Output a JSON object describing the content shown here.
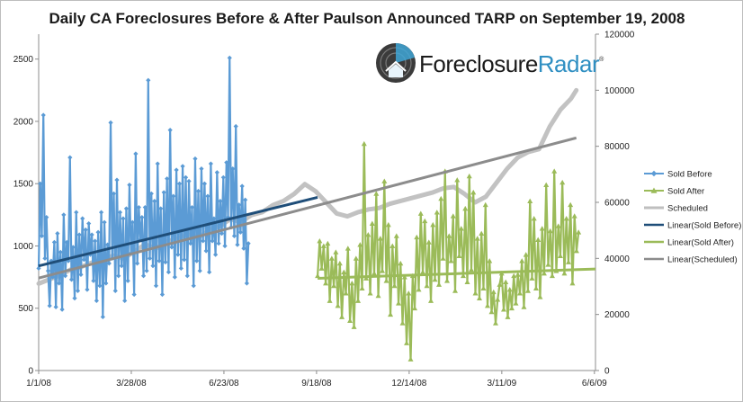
{
  "chart_data": {
    "type": "line",
    "title": "Daily CA Foreclosures Before & After Paulson Announced TARP on September 19, 2008",
    "logo": {
      "brand_part1": "Foreclosure",
      "brand_part2": "Radar",
      "mark": "®"
    },
    "x_tick_labels": [
      "1/1/08",
      "3/28/08",
      "6/23/08",
      "9/18/08",
      "12/14/08",
      "3/11/09",
      "6/6/09"
    ],
    "x_range_days": [
      0,
      523
    ],
    "tarp_day": 262,
    "y_left": {
      "ticks": [
        "0",
        "500",
        "1000",
        "1500",
        "2000",
        "2500"
      ],
      "range": [
        0,
        2700
      ]
    },
    "y_right": {
      "ticks": [
        "0",
        "20000",
        "40000",
        "60000",
        "80000",
        "100000",
        "120000"
      ],
      "range": [
        0,
        120000
      ]
    },
    "colors": {
      "sold_before": "#5b9bd5",
      "sold_after": "#9bbb59",
      "scheduled": "#bfbfbf",
      "linear_before": "#1f4e79",
      "linear_after": "#9bbb59",
      "linear_scheduled": "#8c8c8c",
      "axis": "#8c8c8c"
    },
    "legend": [
      {
        "key": "sold_before",
        "label": "Sold Before",
        "marker": "diamond"
      },
      {
        "key": "sold_after",
        "label": "Sold After",
        "marker": "triangle"
      },
      {
        "key": "scheduled",
        "label": "Scheduled",
        "marker": "line"
      },
      {
        "key": "linear_before",
        "label": "Linear(Sold Before)",
        "marker": "line"
      },
      {
        "key": "linear_after",
        "label": "Linear(Sold After)",
        "marker": "line"
      },
      {
        "key": "linear_scheduled",
        "label": "Linear(Scheduled)",
        "marker": "line"
      }
    ],
    "series": {
      "sold_before": {
        "name": "Sold Before",
        "axis": "left",
        "start_day": 0,
        "step_days": 1.47,
        "values": [
          820,
          1500,
          1080,
          2050,
          900,
          1230,
          800,
          520,
          880,
          750,
          1030,
          510,
          1100,
          700,
          950,
          490,
          1250,
          760,
          1030,
          880,
          1710,
          730,
          990,
          580,
          1270,
          640,
          1090,
          770,
          1220,
          890,
          1130,
          650,
          1180,
          930,
          1090,
          720,
          1040,
          560,
          1110,
          680,
          1270,
          430,
          1190,
          700,
          1010,
          860,
          1990,
          900,
          1420,
          640,
          1530,
          760,
          1270,
          840,
          1220,
          560,
          1300,
          720,
          1490,
          940,
          1190,
          610,
          1740,
          860,
          1310,
          1050,
          1230,
          760,
          1310,
          800,
          2330,
          900,
          1420,
          840,
          1360,
          680,
          1660,
          880,
          1300,
          610,
          1430,
          870,
          1540,
          790,
          1930,
          990,
          1400,
          750,
          1610,
          930,
          1500,
          820,
          1640,
          890,
          1550,
          760,
          1520,
          1020,
          1310,
          680,
          1700,
          880,
          1440,
          800,
          1620,
          1040,
          1500,
          960,
          1400,
          790,
          1660,
          1040,
          1220,
          930,
          1590,
          1020,
          1360,
          1100,
          1550,
          1000,
          1670,
          1230,
          2510,
          1150,
          1620,
          1080,
          1960,
          1010,
          1330,
          1110,
          1480,
          980,
          1370,
          700,
          1020
        ]
      },
      "sold_after": {
        "name": "Sold After",
        "axis": "left",
        "start_day": 262,
        "step_days": 1.9,
        "values": [
          760,
          1040,
          820,
          1000,
          700,
          1020,
          560,
          900,
          680,
          950,
          520,
          860,
          430,
          790,
          620,
          980,
          400,
          700,
          350,
          900,
          560,
          1010,
          660,
          1820,
          740,
          1090,
          620,
          1180,
          780,
          1420,
          600,
          1060,
          800,
          1520,
          720,
          1170,
          450,
          1000,
          680,
          1080,
          540,
          860,
          380,
          750,
          220,
          620,
          90,
          760,
          500,
          1070,
          650,
          1260,
          790,
          1200,
          680,
          1030,
          560,
          1170,
          730,
          1270,
          690,
          1380,
          900,
          1600,
          720,
          1080,
          880,
          1240,
          640,
          1530,
          920,
          1140,
          760,
          1300,
          710,
          1560,
          810,
          1430,
          620,
          1060,
          580,
          1100,
          660,
          1330,
          520,
          880,
          470,
          630,
          380,
          570,
          690,
          780,
          490,
          710,
          430,
          650,
          500,
          760,
          540,
          770,
          620,
          880,
          510,
          930,
          640,
          1360,
          740,
          1220,
          660,
          1050,
          590,
          1140,
          780,
          1490,
          850,
          1120,
          760,
          1600,
          800,
          1160,
          920,
          1510,
          780,
          1220,
          870,
          1330,
          700,
          1240,
          960,
          1110
        ]
      },
      "scheduled": {
        "name": "Scheduled",
        "axis": "right",
        "days": [
          0,
          10,
          20,
          30,
          40,
          50,
          60,
          70,
          80,
          90,
          100,
          110,
          120,
          130,
          140,
          150,
          160,
          170,
          180,
          190,
          200,
          210,
          220,
          230,
          240,
          250,
          260,
          270,
          280,
          290,
          300,
          310,
          320,
          330,
          340,
          350,
          360,
          370,
          380,
          390,
          400,
          410,
          420,
          430,
          440,
          450,
          460,
          470,
          480,
          490,
          500,
          505
        ],
        "values": [
          31000,
          32500,
          34000,
          36000,
          37000,
          38500,
          39500,
          41000,
          40000,
          42500,
          45000,
          43500,
          46000,
          47000,
          48500,
          47500,
          50000,
          51500,
          54000,
          53000,
          55500,
          56500,
          59000,
          60500,
          63000,
          66500,
          64000,
          60000,
          56000,
          55000,
          56500,
          57500,
          58000,
          59500,
          60500,
          61500,
          62500,
          63500,
          65000,
          65500,
          63000,
          60000,
          62000,
          67000,
          72000,
          76000,
          78000,
          79000,
          87000,
          93000,
          97000,
          100000
        ]
      },
      "linear_before": {
        "name": "Linear(Sold Before)",
        "axis": "left",
        "from": [
          0,
          840
        ],
        "to": [
          262,
          1390
        ]
      },
      "linear_after": {
        "name": "Linear(Sold After)",
        "axis": "left",
        "from": [
          262,
          740
        ],
        "to": [
          523,
          815
        ]
      },
      "linear_scheduled": {
        "name": "Linear(Scheduled)",
        "axis": "right",
        "from": [
          0,
          33000
        ],
        "to": [
          505,
          83000
        ]
      }
    }
  }
}
